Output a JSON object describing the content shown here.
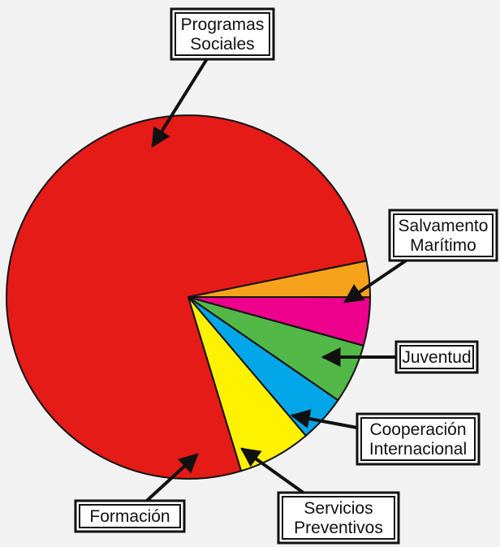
{
  "chart_data": {
    "type": "pie",
    "title": "",
    "slices": [
      {
        "label": "Programas Sociales",
        "lines": [
          "Programas",
          "Sociales"
        ],
        "value": 76.5,
        "color": "#e41b17"
      },
      {
        "label": "Salvamento Marítimo",
        "lines": [
          "Salvamento",
          "Marítimo"
        ],
        "value": 6.5,
        "color": "#fff200"
      },
      {
        "label": "Juventud",
        "lines": [
          "Juventud"
        ],
        "value": 4.2,
        "color": "#00a6e8"
      },
      {
        "label": "Cooperación Internacional",
        "lines": [
          "Cooperación",
          "Internacional"
        ],
        "value": 5.3,
        "color": "#52b848"
      },
      {
        "label": "Servicios Preventivos",
        "lines": [
          "Servicios",
          "Preventivos"
        ],
        "value": 4.3,
        "color": "#ec008c"
      },
      {
        "label": "Formación",
        "lines": [
          "Formación"
        ],
        "value": 3.2,
        "color": "#f7a21b"
      }
    ],
    "legend": "callouts"
  }
}
